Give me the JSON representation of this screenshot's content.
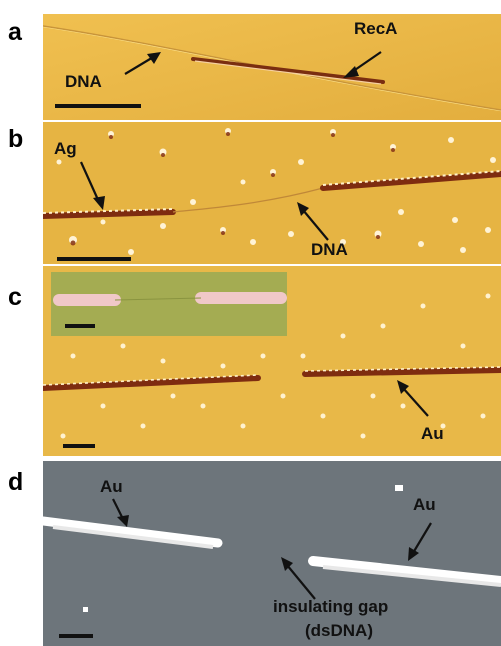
{
  "panels": [
    {
      "id": "a",
      "label": "a",
      "annotations": {
        "recA": "RecA",
        "dna": "DNA"
      }
    },
    {
      "id": "b",
      "label": "b",
      "annotations": {
        "ag": "Ag",
        "dna": "DNA"
      }
    },
    {
      "id": "c",
      "label": "c",
      "annotations": {
        "au": "Au"
      }
    },
    {
      "id": "d",
      "label": "d",
      "annotations": {
        "au_left": "Au",
        "au_right": "Au",
        "gap_line1": "insulating gap",
        "gap_line2": "(dsDNA)"
      }
    }
  ],
  "colors": {
    "afm_background": "#e8b84a",
    "sem_background": "#6c747a",
    "recA_filament": "#8a3a1a",
    "metal_wire": "#a8502a",
    "inset_background": "#9aa84a",
    "inset_wire": "#f0c8c8",
    "sem_wire": "#ffffff"
  }
}
